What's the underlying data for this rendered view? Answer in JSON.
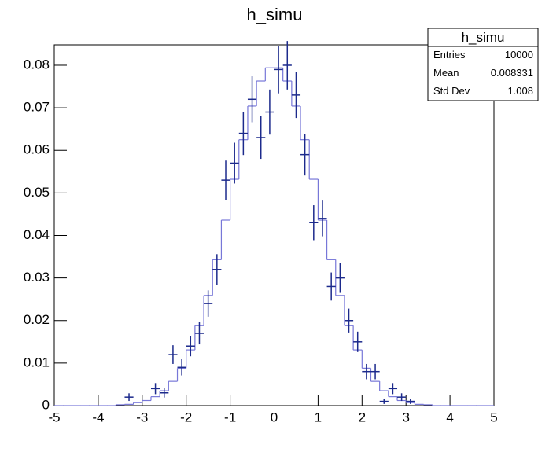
{
  "chart_data": {
    "type": "histogram",
    "title": "h_simu",
    "xlim": [
      -5,
      5
    ],
    "ylim": [
      0,
      0.0848
    ],
    "xticks": [
      -5,
      -4,
      -3,
      -2,
      -1,
      0,
      1,
      2,
      3,
      4,
      5
    ],
    "yticks": [
      0,
      0.01,
      0.02,
      0.03,
      0.04,
      0.05,
      0.06,
      0.07,
      0.08
    ],
    "bins": [
      -5,
      -4.8,
      -4.6,
      -4.4,
      -4.2,
      -4,
      -3.8,
      -3.6,
      -3.4,
      -3.2,
      -3,
      -2.8,
      -2.6,
      -2.4,
      -2.2,
      -2,
      -1.8,
      -1.6,
      -1.4,
      -1.2,
      -1,
      -0.8,
      -0.6,
      -0.4,
      -0.2,
      0,
      0.2,
      0.4,
      0.6,
      0.8,
      1,
      1.2,
      1.4,
      1.6,
      1.8,
      2,
      2.2,
      2.4,
      2.6,
      2.8,
      3,
      3.2,
      3.4,
      3.6,
      3.8,
      4,
      4.2,
      4.4,
      4.6,
      4.8,
      5
    ],
    "counts": [
      0,
      0,
      0,
      0,
      0,
      0,
      0,
      0.0002,
      0.0003,
      0.0007,
      0.0012,
      0.0021,
      0.0035,
      0.0057,
      0.0088,
      0.0131,
      0.0188,
      0.0259,
      0.0343,
      0.0436,
      0.0532,
      0.0625,
      0.0704,
      0.0763,
      0.0794,
      0.0794,
      0.0763,
      0.0704,
      0.0625,
      0.0532,
      0.0436,
      0.0343,
      0.0259,
      0.0188,
      0.0131,
      0.0088,
      0.0057,
      0.0035,
      0.0021,
      0.0012,
      0.0007,
      0.0003,
      0.0002,
      0,
      0,
      0,
      0,
      0,
      0,
      0
    ],
    "line_color": "#7777d8",
    "points": {
      "color": "#1c2a8c",
      "bin_width": 0.2,
      "x": [
        -3.3,
        -2.7,
        -2.5,
        -2.3,
        -2.1,
        -1.9,
        -1.7,
        -1.5,
        -1.3,
        -1.1,
        -0.9,
        -0.7,
        -0.5,
        -0.3,
        -0.1,
        0.1,
        0.3,
        0.5,
        0.7,
        0.9,
        1.1,
        1.3,
        1.5,
        1.7,
        1.9,
        2.1,
        2.3,
        2.5,
        2.7,
        2.9,
        3.1
      ],
      "values": [
        0.002,
        0.004,
        0.003,
        0.012,
        0.009,
        0.014,
        0.017,
        0.024,
        0.032,
        0.053,
        0.057,
        0.064,
        0.072,
        0.063,
        0.069,
        0.079,
        0.08,
        0.073,
        0.059,
        0.043,
        0.044,
        0.028,
        0.03,
        0.02,
        0.015,
        0.008,
        0.008,
        0.001,
        0.004,
        0.002,
        0.001
      ],
      "errors": [
        0.0009,
        0.0013,
        0.0011,
        0.0022,
        0.0019,
        0.0024,
        0.0026,
        0.0031,
        0.0036,
        0.0046,
        0.0048,
        0.0051,
        0.0054,
        0.005,
        0.0053,
        0.0056,
        0.0057,
        0.0054,
        0.0049,
        0.0041,
        0.0042,
        0.0033,
        0.0035,
        0.0028,
        0.0024,
        0.0018,
        0.0018,
        0.0006,
        0.0013,
        0.0009,
        0.0006
      ]
    },
    "stats": {
      "title": "h_simu",
      "rows": [
        [
          "Entries",
          "10000"
        ],
        [
          "Mean",
          "0.008331"
        ],
        [
          "Std Dev",
          "1.008"
        ]
      ]
    }
  }
}
